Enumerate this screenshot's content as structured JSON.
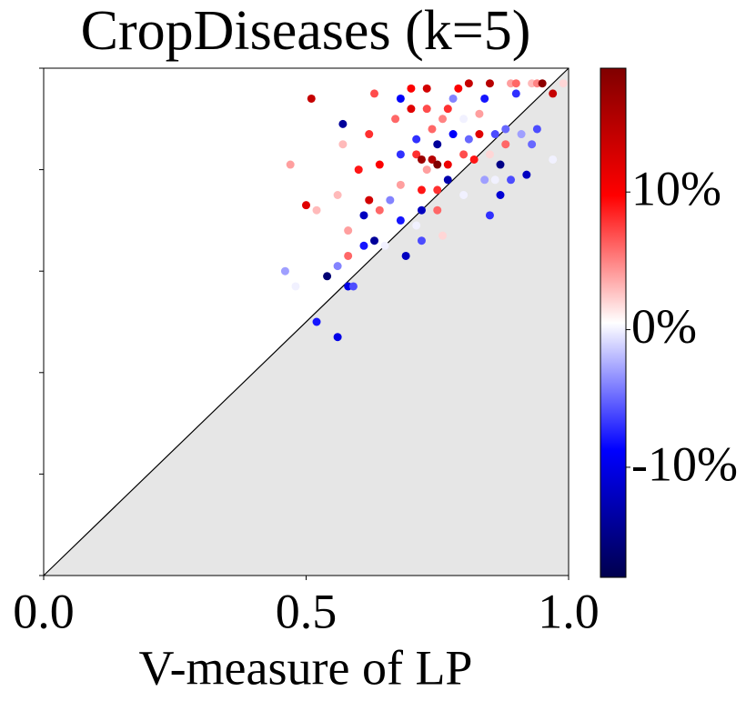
{
  "chart_data": {
    "type": "scatter",
    "title": "CropDiseases (k=5)",
    "x_label": "V-measure of LP",
    "xlim": [
      0,
      1
    ],
    "ylim": [
      0,
      1
    ],
    "xticks": [
      {
        "value": 0,
        "label": "0.0"
      },
      {
        "value": 0.5,
        "label": "0.5"
      },
      {
        "value": 1,
        "label": "1.0"
      }
    ],
    "yticks": [
      0,
      0.2,
      0.4,
      0.6,
      0.8,
      1
    ],
    "colormap": "seismic",
    "clim": [
      -18,
      19
    ],
    "cticks": [
      {
        "value": -10,
        "label": "-10%"
      },
      {
        "value": 0,
        "label": "0%"
      },
      {
        "value": 10,
        "label": "10%"
      }
    ],
    "x": [
      0.51,
      0.47,
      0.57,
      0.57,
      0.5,
      0.52,
      0.46,
      0.48,
      0.52,
      0.56,
      0.54,
      0.56,
      0.56,
      0.58,
      0.58,
      0.58,
      0.59,
      0.6,
      0.61,
      0.61,
      0.62,
      0.62,
      0.63,
      0.63,
      0.64,
      0.64,
      0.65,
      0.66,
      0.67,
      0.68,
      0.68,
      0.68,
      0.68,
      0.69,
      0.7,
      0.7,
      0.71,
      0.71,
      0.71,
      0.72,
      0.72,
      0.72,
      0.73,
      0.73,
      0.73,
      0.74,
      0.74,
      0.75,
      0.75,
      0.75,
      0.76,
      0.76,
      0.77,
      0.77,
      0.77,
      0.78,
      0.78,
      0.79,
      0.8,
      0.8,
      0.81,
      0.81,
      0.82,
      0.83,
      0.83,
      0.84,
      0.84,
      0.85,
      0.85,
      0.85,
      0.86,
      0.87,
      0.87,
      0.88,
      0.88,
      0.89,
      0.89,
      0.9,
      0.9,
      0.91,
      0.92,
      0.93,
      0.93,
      0.94,
      0.94,
      0.95,
      0.97,
      0.97,
      0.99,
      0.75,
      0.72,
      0.8,
      0.86
    ],
    "values": [
      0.94,
      0.81,
      0.89,
      0.85,
      0.73,
      0.72,
      0.6,
      0.57,
      0.5,
      0.47,
      0.59,
      0.61,
      0.75,
      0.68,
      0.63,
      0.57,
      0.57,
      0.8,
      0.65,
      0.71,
      0.87,
      0.74,
      0.66,
      0.95,
      0.81,
      0.72,
      0.65,
      0.74,
      0.9,
      0.94,
      0.83,
      0.77,
      0.7,
      0.63,
      0.92,
      0.96,
      0.83,
      0.69,
      0.86,
      0.76,
      0.72,
      0.66,
      0.92,
      0.96,
      0.8,
      0.88,
      0.82,
      0.72,
      0.85,
      0.76,
      0.67,
      0.9,
      0.81,
      0.92,
      0.78,
      0.94,
      0.87,
      0.96,
      0.83,
      0.9,
      0.86,
      0.97,
      0.82,
      0.87,
      0.91,
      0.78,
      0.94,
      0.71,
      0.97,
      0.83,
      0.87,
      0.81,
      0.75,
      0.85,
      0.88,
      0.78,
      0.97,
      0.95,
      0.97,
      0.87,
      0.79,
      0.97,
      0.85,
      0.97,
      0.88,
      0.97,
      0.82,
      0.95,
      0.97,
      0.81,
      0.82,
      0.75,
      0.78
    ],
    "color_values": [
      14,
      4,
      -14,
      3,
      12,
      3,
      -3,
      0,
      -8,
      -10,
      -16,
      -4,
      3,
      4,
      6,
      -10,
      -6,
      9,
      -8,
      -12,
      8,
      13,
      -14,
      7,
      10,
      6,
      0,
      -4,
      6,
      -9,
      -7,
      4,
      -8,
      -12,
      12,
      10,
      8,
      0,
      -7,
      9,
      -12,
      -6,
      7,
      13,
      4,
      6,
      15,
      6,
      -14,
      8,
      2,
      5,
      11,
      8,
      -13,
      -4,
      -9,
      10,
      7,
      0,
      -5,
      14,
      9,
      12,
      4,
      -3,
      -8,
      -7,
      15,
      2,
      -6,
      -15,
      -11,
      6,
      -5,
      -6,
      4,
      -7,
      6,
      -3,
      -12,
      3,
      -5,
      5,
      -6,
      18,
      0,
      14,
      2,
      19,
      17,
      0,
      0
    ]
  }
}
